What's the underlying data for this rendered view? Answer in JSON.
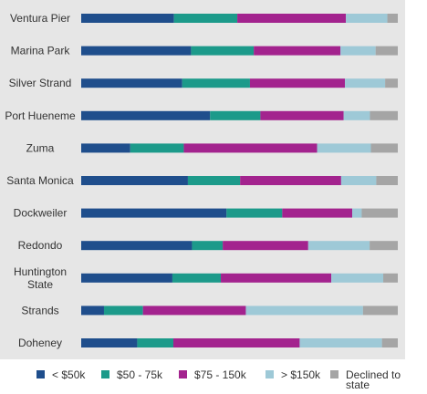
{
  "chart_data": {
    "type": "bar",
    "orientation": "horizontal",
    "stacked": true,
    "normalized": true,
    "legend_position": "bottom",
    "categories": [
      [
        "Ventura Pier"
      ],
      [
        "Marina Park"
      ],
      [
        "Silver Strand"
      ],
      [
        "Port Hueneme"
      ],
      [
        "Zuma"
      ],
      [
        "Santa Monica"
      ],
      [
        "Dockweiler"
      ],
      [
        "Redondo"
      ],
      [
        "Huntington",
        "State"
      ],
      [
        "Strands"
      ],
      [
        "Doheney"
      ]
    ],
    "series": [
      {
        "name": "< $50k",
        "color": "#1f4e8c",
        "values": [
          0.293,
          0.347,
          0.319,
          0.407,
          0.155,
          0.337,
          0.459,
          0.35,
          0.288,
          0.072,
          0.177
        ]
      },
      {
        "name": "$50 - 75k",
        "color": "#1c9a8a",
        "values": [
          0.2,
          0.198,
          0.214,
          0.159,
          0.169,
          0.165,
          0.176,
          0.097,
          0.153,
          0.123,
          0.114
        ]
      },
      {
        "name": "$75 - 150k",
        "color": "#a3238e",
        "values": [
          0.343,
          0.274,
          0.3,
          0.263,
          0.421,
          0.319,
          0.221,
          0.27,
          0.349,
          0.325,
          0.399
        ]
      },
      {
        "name": "> $150k",
        "color": "#9ec9d7",
        "values": [
          0.131,
          0.111,
          0.127,
          0.083,
          0.17,
          0.111,
          0.03,
          0.194,
          0.164,
          0.37,
          0.26
        ]
      },
      {
        "name": "Declined to state",
        "color": "#a5a5a5",
        "values": [
          0.033,
          0.07,
          0.04,
          0.088,
          0.085,
          0.068,
          0.114,
          0.089,
          0.046,
          0.11,
          0.05
        ]
      }
    ],
    "legend_labels": [
      [
        "< $50k"
      ],
      [
        "$50 - 75k"
      ],
      [
        "$75 - 150k"
      ],
      [
        "> $150k"
      ],
      [
        "Declined to",
        "state"
      ]
    ]
  }
}
